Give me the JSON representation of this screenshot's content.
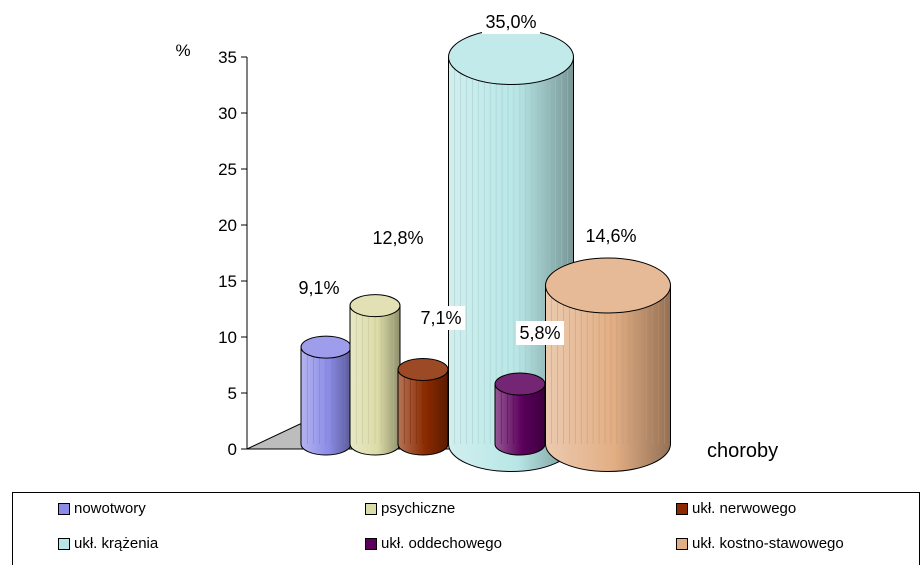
{
  "chart_data": {
    "type": "bar",
    "ylabel": "%",
    "xlabel": "choroby",
    "ylim": [
      0,
      35
    ],
    "yticks": [
      0,
      5,
      10,
      15,
      20,
      25,
      30,
      35
    ],
    "grid": false,
    "legend_position": "bottom",
    "categories": [
      "nowotwory",
      "psychiczne",
      "ukł. nerwowego",
      "ukł. krążenia",
      "ukł. oddechowego",
      "ukł. kostno-stawowego"
    ],
    "values": [
      9.1,
      12.8,
      7.1,
      35.0,
      5.8,
      14.6
    ],
    "value_labels": [
      "9,1%",
      "12,8%",
      "7,1%",
      "35,0%",
      "5,8%",
      "14,6%"
    ],
    "colors": [
      "#8C8CE8",
      "#DCDCA8",
      "#8B2A00",
      "#B8E6E6",
      "#5C005C",
      "#E2AE84"
    ]
  }
}
